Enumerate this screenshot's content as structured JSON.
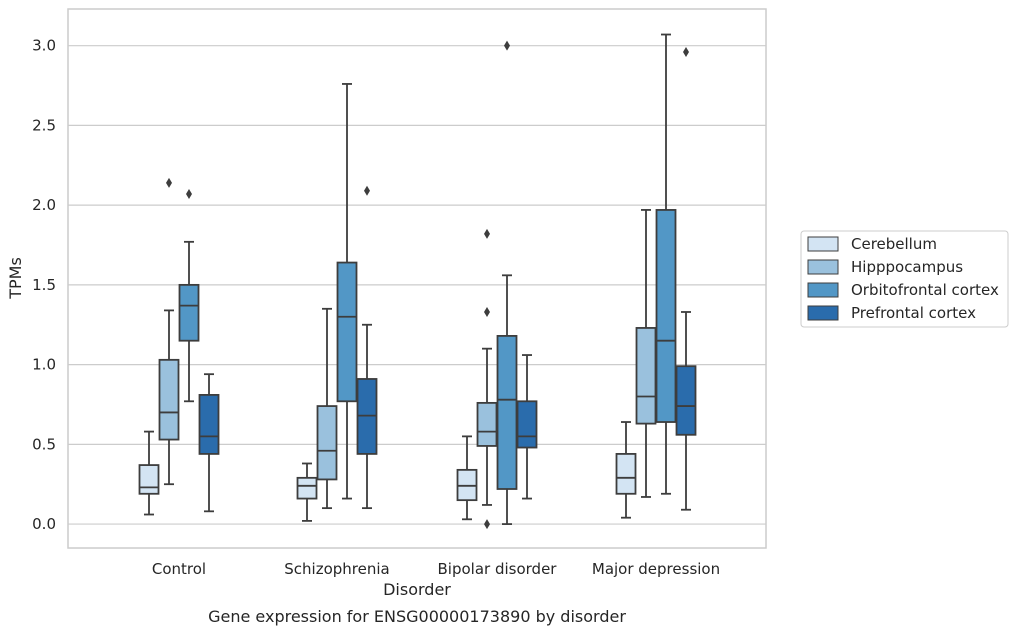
{
  "chart_data": {
    "type": "boxplot",
    "caption": "Gene expression for ENSG00000173890 by disorder",
    "xlabel": "Disorder",
    "ylabel": "TPMs",
    "ylim": [
      -0.15,
      3.23
    ],
    "yticks": [
      0.0,
      0.5,
      1.0,
      1.5,
      2.0,
      2.5,
      3.0
    ],
    "ytick_labels": [
      "0.0",
      "0.5",
      "1.0",
      "1.5",
      "2.0",
      "2.5",
      "3.0"
    ],
    "grid": "horizontal",
    "legend_placement": "right",
    "categories": [
      "Control",
      "Schizophrenia",
      "Bipolar disorder",
      "Major depression"
    ],
    "series": [
      {
        "name": "Cerebellum",
        "color": "#d3e4f3",
        "boxes": [
          {
            "whisker_low": 0.06,
            "q1": 0.19,
            "median": 0.23,
            "q3": 0.37,
            "whisker_high": 0.58,
            "outliers": []
          },
          {
            "whisker_low": 0.02,
            "q1": 0.16,
            "median": 0.24,
            "q3": 0.29,
            "whisker_high": 0.38,
            "outliers": []
          },
          {
            "whisker_low": 0.03,
            "q1": 0.15,
            "median": 0.24,
            "q3": 0.34,
            "whisker_high": 0.55,
            "outliers": []
          },
          {
            "whisker_low": 0.04,
            "q1": 0.19,
            "median": 0.29,
            "q3": 0.44,
            "whisker_high": 0.64,
            "outliers": []
          }
        ]
      },
      {
        "name": "Hipppocampus",
        "color": "#9ac1dd",
        "boxes": [
          {
            "whisker_low": 0.25,
            "q1": 0.53,
            "median": 0.7,
            "q3": 1.03,
            "whisker_high": 1.34,
            "outliers": [
              2.14
            ]
          },
          {
            "whisker_low": 0.1,
            "q1": 0.28,
            "median": 0.46,
            "q3": 0.74,
            "whisker_high": 1.35,
            "outliers": []
          },
          {
            "whisker_low": 0.12,
            "q1": 0.49,
            "median": 0.58,
            "q3": 0.76,
            "whisker_high": 1.1,
            "outliers": [
              0.0,
              1.33,
              1.82
            ]
          },
          {
            "whisker_low": 0.17,
            "q1": 0.63,
            "median": 0.8,
            "q3": 1.23,
            "whisker_high": 1.97,
            "outliers": []
          }
        ]
      },
      {
        "name": "Orbitofrontal cortex",
        "color": "#5297c6",
        "boxes": [
          {
            "whisker_low": 0.77,
            "q1": 1.15,
            "median": 1.37,
            "q3": 1.5,
            "whisker_high": 1.77,
            "outliers": [
              2.07
            ]
          },
          {
            "whisker_low": 0.16,
            "q1": 0.77,
            "median": 1.3,
            "q3": 1.64,
            "whisker_high": 2.76,
            "outliers": []
          },
          {
            "whisker_low": 0.0,
            "q1": 0.22,
            "median": 0.78,
            "q3": 1.18,
            "whisker_high": 1.56,
            "outliers": [
              3.0
            ]
          },
          {
            "whisker_low": 0.19,
            "q1": 0.64,
            "median": 1.15,
            "q3": 1.97,
            "whisker_high": 3.07,
            "outliers": []
          }
        ]
      },
      {
        "name": "Prefrontal cortex",
        "color": "#2a6cac",
        "boxes": [
          {
            "whisker_low": 0.08,
            "q1": 0.44,
            "median": 0.55,
            "q3": 0.81,
            "whisker_high": 0.94,
            "outliers": []
          },
          {
            "whisker_low": 0.1,
            "q1": 0.44,
            "median": 0.68,
            "q3": 0.91,
            "whisker_high": 1.25,
            "outliers": [
              2.09
            ]
          },
          {
            "whisker_low": 0.16,
            "q1": 0.48,
            "median": 0.55,
            "q3": 0.77,
            "whisker_high": 1.06,
            "outliers": []
          },
          {
            "whisker_low": 0.09,
            "q1": 0.56,
            "median": 0.74,
            "q3": 0.99,
            "whisker_high": 1.33,
            "outliers": [
              2.96
            ]
          }
        ]
      }
    ]
  }
}
